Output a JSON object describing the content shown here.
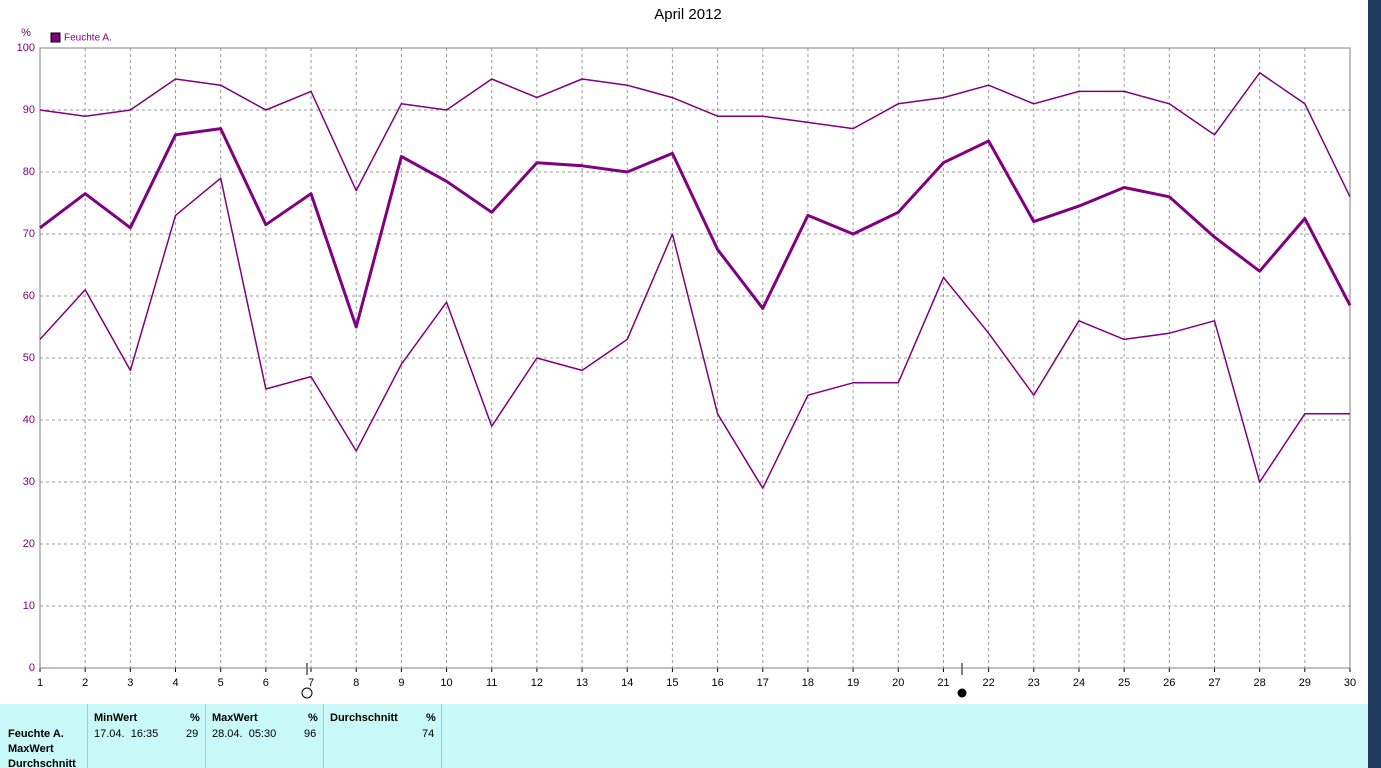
{
  "chart_data": {
    "type": "line",
    "title": "April 2012",
    "y_label": "%",
    "legend_label": "Feuchte A.",
    "legend_color": "#800080",
    "x": [
      1,
      2,
      3,
      4,
      5,
      6,
      7,
      8,
      9,
      10,
      11,
      12,
      13,
      14,
      15,
      16,
      17,
      18,
      19,
      20,
      21,
      22,
      23,
      24,
      25,
      26,
      27,
      28,
      29,
      30
    ],
    "xlim": [
      1,
      30
    ],
    "xticks": [
      1,
      2,
      3,
      4,
      5,
      6,
      7,
      8,
      9,
      10,
      11,
      12,
      13,
      14,
      15,
      16,
      17,
      18,
      19,
      20,
      21,
      22,
      23,
      24,
      25,
      26,
      27,
      28,
      29,
      30
    ],
    "ylim": [
      0,
      100
    ],
    "yticks": [
      0,
      10,
      20,
      30,
      40,
      50,
      60,
      70,
      80,
      90,
      100
    ],
    "grid": true,
    "series": [
      {
        "color": "#800080",
        "line_width": 1.5,
        "values": [
          90,
          89,
          90,
          95,
          94,
          90,
          93,
          77,
          91,
          90,
          95,
          92,
          95,
          94,
          92,
          89,
          89,
          88,
          87,
          91,
          92,
          94,
          91,
          93,
          93,
          91,
          86,
          96,
          91,
          76
        ]
      },
      {
        "color": "#800080",
        "line_width": 3,
        "values": [
          71,
          76.5,
          71,
          86,
          87,
          71.5,
          76.5,
          55,
          82.5,
          78.5,
          73.5,
          81.5,
          81,
          80,
          83,
          67.5,
          58,
          73,
          70,
          73.5,
          81.5,
          85,
          72,
          74.5,
          77.5,
          76,
          69.5,
          64,
          72.5,
          58.5
        ]
      },
      {
        "color": "#800080",
        "line_width": 1.5,
        "values": [
          53,
          61,
          48,
          73,
          79,
          45,
          47,
          35,
          49,
          59,
          39,
          50,
          48,
          53,
          70,
          41,
          29,
          44,
          46,
          46,
          63,
          54,
          44,
          56,
          53,
          54,
          56,
          30,
          41,
          41
        ]
      }
    ]
  },
  "table": {
    "row_labels": [
      "Feuchte A.",
      "MaxWert",
      "Durchschnitt"
    ],
    "columns": [
      {
        "header": "MinWert",
        "unit": "%",
        "time": "17.04.  16:35",
        "value": 29
      },
      {
        "header": "MaxWert",
        "unit": "%",
        "time": "28.04.  05:30",
        "value": 96
      },
      {
        "header": "Durchschnitt",
        "unit": "%",
        "value": 74
      }
    ]
  }
}
